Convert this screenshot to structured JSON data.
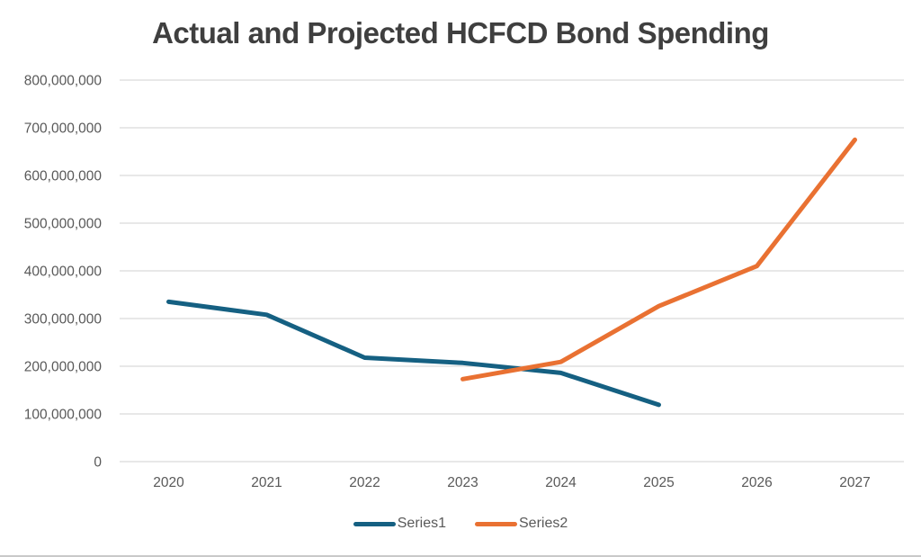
{
  "title": "Actual and Projected HCFCD Bond Spending",
  "colors": {
    "series1": "#156082",
    "series2": "#E97132",
    "gridline": "#D9D9D9",
    "axis_text": "#595959",
    "title_text": "#3F3F3F"
  },
  "legend": {
    "items": [
      {
        "label": "Series1",
        "color": "#156082"
      },
      {
        "label": "Series2",
        "color": "#E97132"
      }
    ]
  },
  "chart_data": {
    "type": "line",
    "title": "Actual and Projected HCFCD Bond Spending",
    "categories": [
      "2020",
      "2021",
      "2022",
      "2023",
      "2024",
      "2025",
      "2026",
      "2027"
    ],
    "series": [
      {
        "name": "Series1",
        "color": "#156082",
        "values": [
          335000000,
          308000000,
          218000000,
          207000000,
          186000000,
          119000000,
          null,
          null
        ]
      },
      {
        "name": "Series2",
        "color": "#E97132",
        "values": [
          null,
          null,
          null,
          173000000,
          209000000,
          326000000,
          410000000,
          675000000
        ]
      }
    ],
    "ylim": [
      0,
      800000000
    ],
    "ytick_step": 100000000,
    "ytick_labels": [
      "0",
      "100,000,000",
      "200,000,000",
      "300,000,000",
      "400,000,000",
      "500,000,000",
      "600,000,000",
      "700,000,000",
      "800,000,000"
    ],
    "xlabel": "",
    "ylabel": "",
    "grid": true,
    "legend_position": "bottom"
  }
}
